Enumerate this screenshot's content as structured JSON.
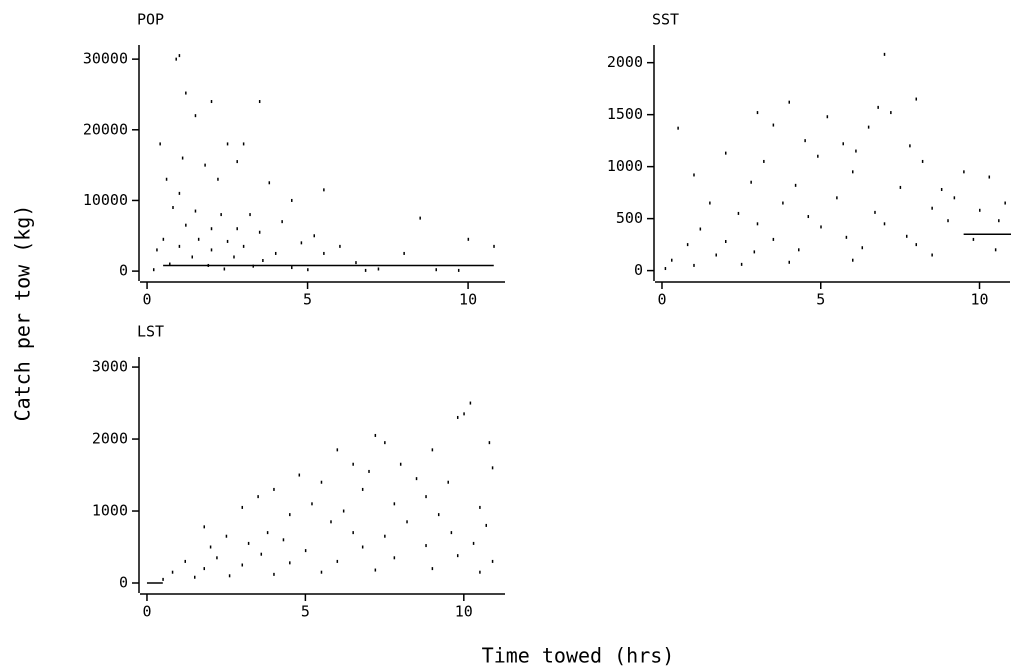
{
  "xlabel": "Time towed (hrs)",
  "ylabel": "Catch per tow (kg)",
  "chart_data": [
    {
      "type": "scatter",
      "title": "POP",
      "color": "#000000",
      "xlim": [
        -0.22,
        11.15
      ],
      "ylim": [
        -1400,
        32000
      ],
      "xticks": [
        0,
        5,
        10
      ],
      "yticks": [
        0,
        10000,
        20000,
        30000
      ],
      "x": [
        1.0,
        0.9,
        1.2,
        2.0,
        3.5,
        1.5,
        0.4,
        2.5,
        3.0,
        1.1,
        1.8,
        2.8,
        0.6,
        2.2,
        3.8,
        5.5,
        1.0,
        4.5,
        0.8,
        1.5,
        2.3,
        3.2,
        8.5,
        4.2,
        1.2,
        2.0,
        2.8,
        3.5,
        5.2,
        0.5,
        1.6,
        2.5,
        4.8,
        10.0,
        1.0,
        3.0,
        6.0,
        10.8,
        0.3,
        2.0,
        4.0,
        5.5,
        8.0,
        1.4,
        2.7,
        3.6,
        6.5,
        0.7,
        1.9,
        3.3,
        4.5,
        7.2,
        9.0,
        0.2,
        2.4,
        5.0,
        6.8,
        9.7
      ],
      "values": [
        30500,
        30000,
        25200,
        24000,
        24000,
        22000,
        18000,
        18000,
        18000,
        16000,
        15000,
        15500,
        13000,
        13000,
        12500,
        11500,
        11000,
        10000,
        9000,
        8500,
        8000,
        8000,
        7500,
        7000,
        6500,
        6000,
        6000,
        5500,
        5000,
        4500,
        4500,
        4200,
        4000,
        4500,
        3500,
        3500,
        3500,
        3500,
        3000,
        3000,
        2500,
        2500,
        2500,
        2000,
        2000,
        1500,
        1200,
        1000,
        800,
        700,
        500,
        300,
        200,
        200,
        300,
        200,
        100,
        100
      ],
      "line": {
        "x": [
          0.5,
          10.8
        ],
        "values": [
          800,
          800
        ]
      }
    },
    {
      "type": "scatter",
      "title": "SST",
      "color": "#000000",
      "xlim": [
        -0.22,
        10.96
      ],
      "ylim": [
        -100,
        2170
      ],
      "xticks": [
        0,
        5,
        10
      ],
      "yticks": [
        0,
        500,
        1000,
        1500,
        2000
      ],
      "x": [
        7.0,
        8.0,
        4.0,
        6.8,
        7.2,
        3.0,
        5.2,
        3.5,
        0.5,
        6.5,
        4.5,
        5.7,
        2.0,
        6.1,
        7.8,
        4.9,
        3.2,
        8.2,
        9.5,
        1.0,
        6.0,
        10.3,
        2.8,
        4.2,
        7.5,
        8.8,
        1.5,
        3.8,
        5.5,
        9.2,
        10.8,
        2.4,
        4.6,
        6.7,
        8.5,
        10.0,
        1.2,
        3.0,
        5.0,
        7.0,
        9.0,
        10.6,
        0.8,
        2.0,
        3.5,
        5.8,
        7.7,
        9.8,
        0.3,
        1.7,
        2.9,
        4.3,
        6.3,
        8.0,
        0.1,
        1.0,
        2.5,
        4.0,
        6.0,
        8.5,
        10.5
      ],
      "values": [
        2080,
        1650,
        1620,
        1570,
        1520,
        1520,
        1480,
        1400,
        1370,
        1380,
        1250,
        1220,
        1130,
        1150,
        1200,
        1100,
        1050,
        1050,
        950,
        920,
        950,
        900,
        850,
        820,
        800,
        780,
        650,
        650,
        700,
        700,
        650,
        550,
        520,
        560,
        600,
        580,
        400,
        450,
        420,
        450,
        480,
        480,
        250,
        280,
        300,
        320,
        330,
        300,
        100,
        150,
        180,
        200,
        220,
        250,
        20,
        50,
        60,
        80,
        100,
        150,
        200
      ],
      "line": {
        "x": [
          9.5,
          11
        ],
        "values": [
          350,
          350
        ]
      }
    },
    {
      "type": "scatter",
      "title": "LST",
      "color": "#000000",
      "xlim": [
        -0.22,
        11.3
      ],
      "ylim": [
        -139,
        3140
      ],
      "xticks": [
        0,
        5,
        10
      ],
      "yticks": [
        0,
        1000,
        2000,
        3000
      ],
      "x": [
        10.2,
        10.0,
        9.8,
        10.8,
        7.2,
        7.5,
        6.0,
        9.0,
        6.5,
        8.0,
        10.9,
        4.8,
        7.0,
        8.5,
        5.5,
        9.5,
        4.0,
        6.8,
        3.5,
        8.8,
        3.0,
        5.2,
        7.8,
        10.5,
        1.8,
        4.5,
        6.2,
        9.2,
        2.5,
        3.8,
        5.8,
        8.2,
        10.7,
        2.0,
        3.2,
        4.3,
        6.5,
        7.5,
        9.6,
        1.2,
        2.2,
        3.6,
        5.0,
        6.8,
        8.8,
        10.3,
        0.8,
        1.8,
        3.0,
        4.5,
        6.0,
        7.8,
        9.8,
        10.9,
        0.5,
        1.5,
        2.6,
        4.0,
        5.5,
        7.2,
        9.0,
        10.5
      ],
      "values": [
        2500,
        2350,
        2300,
        1950,
        2050,
        1950,
        1850,
        1850,
        1650,
        1650,
        1600,
        1500,
        1550,
        1450,
        1400,
        1400,
        1300,
        1300,
        1200,
        1200,
        1050,
        1100,
        1100,
        1050,
        780,
        950,
        1000,
        950,
        650,
        700,
        850,
        850,
        800,
        500,
        550,
        600,
        700,
        650,
        700,
        300,
        350,
        400,
        450,
        500,
        520,
        550,
        150,
        200,
        250,
        280,
        300,
        350,
        380,
        300,
        50,
        80,
        100,
        120,
        150,
        180,
        200,
        150
      ],
      "line": {
        "x": [
          0,
          0.5
        ],
        "values": [
          0,
          0
        ]
      }
    }
  ]
}
